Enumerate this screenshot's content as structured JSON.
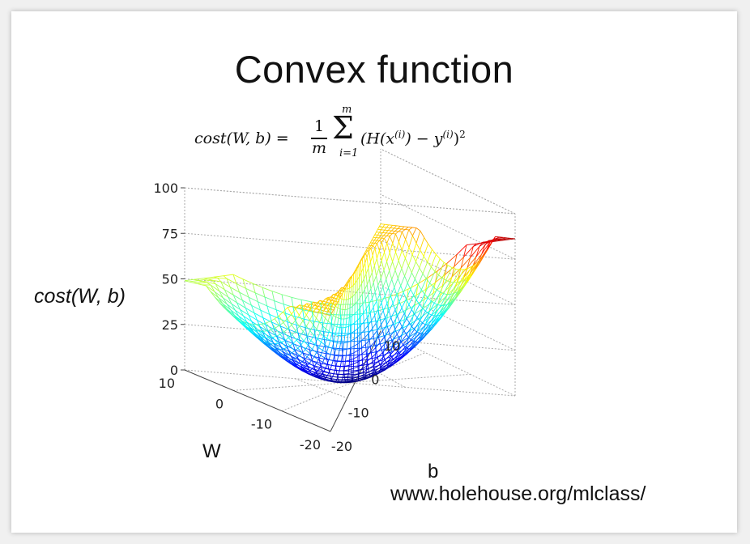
{
  "slide": {
    "title": "Convex function",
    "formula": {
      "lhs": "cost(W, b) =",
      "frac_num": "1",
      "frac_den": "m",
      "sum_top": "m",
      "sum_bottom": "i=1",
      "body": "(H(x",
      "sup1": "(i)",
      "body2": ") − y",
      "sup2": "(i)",
      "body3": ")",
      "exp": "2"
    },
    "source": "www.holehouse.org/mlclass/"
  },
  "chart_data": {
    "type": "surface",
    "title": "",
    "zlabel": "cost(W, b)",
    "xlabel": "b",
    "ylabel": "W",
    "x_ticks": [
      "-20",
      "-10",
      "0",
      "10"
    ],
    "y_ticks": [
      "-20",
      "-10",
      "0",
      "10"
    ],
    "z_ticks": [
      "0",
      "25",
      "50",
      "75",
      "100"
    ],
    "xlim": [
      -20,
      10
    ],
    "ylim": [
      -20,
      10
    ],
    "zlim": [
      0,
      100
    ],
    "grid": true,
    "colormap": "jet",
    "corner_values": [
      {
        "W": 10,
        "b": -20,
        "cost": 50
      },
      {
        "W": 10,
        "b": 10,
        "cost": 88
      },
      {
        "W": -20,
        "b": 10,
        "cost": 60
      },
      {
        "W": -20,
        "b": -20,
        "cost": 65
      }
    ],
    "minimum": {
      "W": -3,
      "b": -5,
      "cost": 0
    }
  }
}
